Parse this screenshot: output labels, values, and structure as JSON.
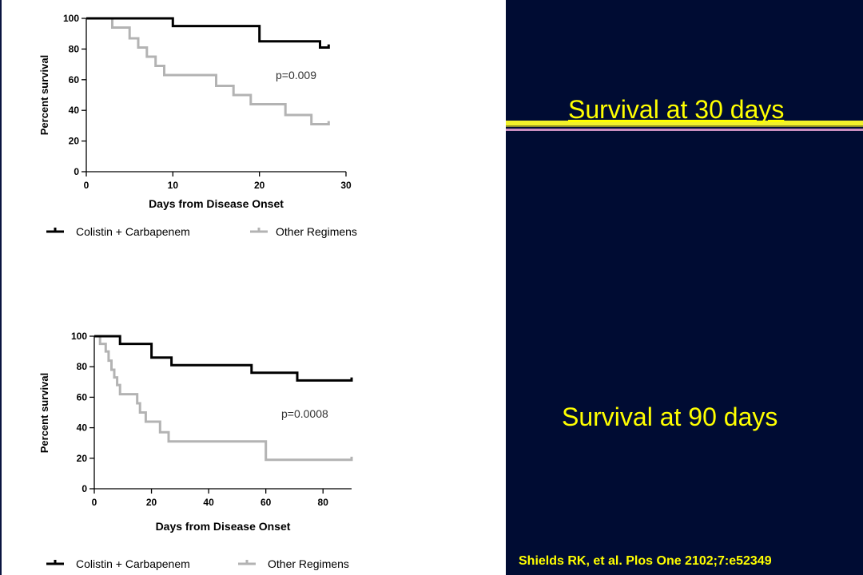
{
  "right_panel": {
    "label_30": "Survival at 30 days",
    "label_90": "Survival at 90 days",
    "citation": "Shields RK, et al. Plos One 2102;7:e52349",
    "text_color": "#ffff00",
    "background": "#000c33"
  },
  "chart_data": [
    {
      "type": "line",
      "step": true,
      "xlabel": "Days from Disease Onset",
      "ylabel": "Percent survival",
      "xlim": [
        0,
        30
      ],
      "ylim": [
        0,
        100
      ],
      "xticks": [
        0,
        10,
        20,
        30
      ],
      "yticks": [
        0,
        20,
        40,
        60,
        80,
        100
      ],
      "annotation": "p=0.009",
      "legend_position": "bottom",
      "series": [
        {
          "name": "Colistin + Carbapenem",
          "color": "#000000",
          "points": [
            [
              0,
              100
            ],
            [
              10,
              100
            ],
            [
              10,
              95
            ],
            [
              20,
              95
            ],
            [
              20,
              85
            ],
            [
              27,
              85
            ],
            [
              27,
              81
            ],
            [
              28,
              81
            ],
            [
              28,
              83
            ]
          ]
        },
        {
          "name": "Other Regimens",
          "color": "#b3b3b3",
          "points": [
            [
              0,
              100
            ],
            [
              3,
              100
            ],
            [
              3,
              94
            ],
            [
              5,
              94
            ],
            [
              5,
              87
            ],
            [
              6,
              87
            ],
            [
              6,
              81
            ],
            [
              7,
              81
            ],
            [
              7,
              75
            ],
            [
              8,
              75
            ],
            [
              8,
              69
            ],
            [
              9,
              69
            ],
            [
              9,
              63
            ],
            [
              15,
              63
            ],
            [
              15,
              56
            ],
            [
              17,
              56
            ],
            [
              17,
              50
            ],
            [
              19,
              50
            ],
            [
              19,
              44
            ],
            [
              23,
              44
            ],
            [
              23,
              37
            ],
            [
              26,
              37
            ],
            [
              26,
              31
            ],
            [
              28,
              31
            ],
            [
              28,
              33
            ]
          ]
        }
      ]
    },
    {
      "type": "line",
      "step": true,
      "xlabel": "Days from Disease Onset",
      "ylabel": "Percent survival",
      "xlim": [
        0,
        90
      ],
      "ylim": [
        0,
        100
      ],
      "xticks": [
        0,
        20,
        40,
        60,
        80
      ],
      "yticks": [
        0,
        20,
        40,
        60,
        80,
        100
      ],
      "annotation": "p=0.0008",
      "legend_position": "bottom",
      "series": [
        {
          "name": "Colistin + Carbapenem",
          "color": "#000000",
          "points": [
            [
              0,
              100
            ],
            [
              9,
              100
            ],
            [
              9,
              95
            ],
            [
              20,
              95
            ],
            [
              20,
              86
            ],
            [
              27,
              86
            ],
            [
              27,
              81
            ],
            [
              55,
              81
            ],
            [
              55,
              76
            ],
            [
              71,
              76
            ],
            [
              71,
              71
            ],
            [
              90,
              71
            ],
            [
              90,
              73
            ]
          ]
        },
        {
          "name": "Other Regimens",
          "color": "#b3b3b3",
          "points": [
            [
              0,
              100
            ],
            [
              2,
              100
            ],
            [
              2,
              95
            ],
            [
              4,
              95
            ],
            [
              4,
              90
            ],
            [
              5,
              90
            ],
            [
              5,
              84
            ],
            [
              6,
              84
            ],
            [
              6,
              78
            ],
            [
              7,
              78
            ],
            [
              7,
              73
            ],
            [
              8,
              73
            ],
            [
              8,
              68
            ],
            [
              9,
              68
            ],
            [
              9,
              62
            ],
            [
              15,
              62
            ],
            [
              15,
              56
            ],
            [
              16,
              56
            ],
            [
              16,
              50
            ],
            [
              18,
              50
            ],
            [
              18,
              44
            ],
            [
              23,
              44
            ],
            [
              23,
              37
            ],
            [
              26,
              37
            ],
            [
              26,
              31
            ],
            [
              60,
              31
            ],
            [
              60,
              19
            ],
            [
              90,
              19
            ],
            [
              90,
              21
            ]
          ]
        }
      ]
    }
  ]
}
